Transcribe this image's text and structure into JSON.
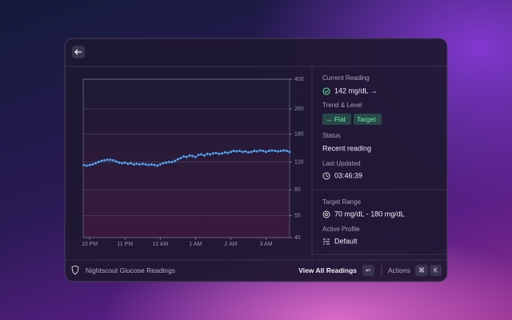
{
  "chart_data": {
    "type": "line",
    "color": "#4ea6f2",
    "log_scale": true,
    "grid": true,
    "x": [
      -10,
      -5,
      0,
      5,
      10,
      15,
      20,
      25,
      30,
      35,
      40,
      45,
      50,
      55,
      60,
      65,
      70,
      75,
      80,
      85,
      90,
      95,
      100,
      105,
      110,
      115,
      120,
      125,
      130,
      135,
      140,
      145,
      150,
      155,
      160,
      165,
      170,
      175,
      180,
      185,
      190,
      195,
      200,
      205,
      210,
      215,
      220,
      225,
      230,
      235,
      240,
      245,
      250,
      255,
      260,
      265,
      270,
      275,
      280,
      285,
      290,
      295,
      300,
      305,
      310,
      315,
      320,
      325,
      330,
      335,
      340
    ],
    "values": [
      115,
      114,
      115,
      116,
      118,
      120,
      122,
      123,
      124,
      124,
      123,
      121,
      119,
      118,
      119,
      117,
      118,
      116,
      117,
      116,
      117,
      116,
      115,
      116,
      115,
      114,
      116,
      118,
      119,
      120,
      120,
      122,
      125,
      127,
      130,
      129,
      132,
      131,
      129,
      133,
      134,
      132,
      135,
      134,
      136,
      137,
      135,
      136,
      138,
      137,
      139,
      141,
      140,
      141,
      139,
      140,
      138,
      139,
      141,
      140,
      142,
      141,
      139,
      141,
      142,
      141,
      140,
      141,
      142,
      141,
      139
    ],
    "xlim": [
      -11,
      340
    ],
    "xticks": [
      {
        "value": 0,
        "label": "10 PM"
      },
      {
        "value": 60,
        "label": "11 PM"
      },
      {
        "value": 120,
        "label": "12 AM"
      },
      {
        "value": 180,
        "label": "1 AM"
      },
      {
        "value": 240,
        "label": "2 AM"
      },
      {
        "value": 300,
        "label": "3 AM"
      }
    ],
    "ylim": [
      40,
      400
    ],
    "yticks": [
      40,
      55,
      80,
      120,
      180,
      260,
      400
    ]
  },
  "panel": {
    "current_reading": {
      "label": "Current Reading",
      "value": "142 mg/dL →"
    },
    "trend": {
      "label": "Trend & Level",
      "tags": [
        "→ Flat",
        "Target"
      ]
    },
    "status": {
      "label": "Status",
      "value": "Recent reading"
    },
    "last_updated": {
      "label": "Last Updated",
      "value": "03:46:39"
    },
    "target_range": {
      "label": "Target Range",
      "value": "70 mg/dL - 180 mg/dL"
    },
    "active_profile": {
      "label": "Active Profile",
      "value": "Default"
    }
  },
  "footer": {
    "title": "Nightscout Glucose Readings",
    "primary_action": "View All Readings",
    "primary_key": "↵",
    "actions": "Actions",
    "action_keys": [
      "⌘",
      "K"
    ]
  }
}
